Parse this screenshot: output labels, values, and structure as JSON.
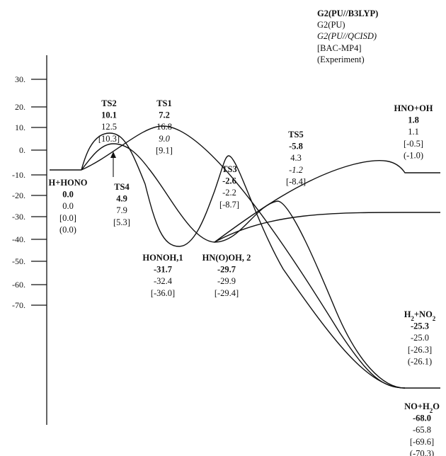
{
  "chart_data": {
    "type": "energy-profile",
    "y_ticks": [
      "30.",
      "20.",
      "10.",
      "0.",
      "-10.",
      "-20.",
      "-30.",
      "-40.",
      "-50.",
      "-60.",
      "-70."
    ],
    "legend": {
      "lines": [
        {
          "text": "G2(PU//B3LYP)",
          "style": "bold"
        },
        {
          "text": "G2(PU)",
          "style": "normal"
        },
        {
          "text": "G2(PU//QCISD)",
          "style": "italic"
        },
        {
          "text": "[BAC-MP4]",
          "style": "normal"
        },
        {
          "text": "(Experiment)",
          "style": "normal"
        }
      ]
    },
    "species": [
      {
        "id": "reactant",
        "name": "H+HONO",
        "energy": 0.0,
        "values": [
          "0.0",
          "0.0",
          "[0.0]",
          "(0.0)"
        ]
      },
      {
        "id": "ts2",
        "name": "TS2",
        "energy": 10.1,
        "values": [
          "10.1",
          "12.5",
          "[10.3]"
        ]
      },
      {
        "id": "ts1",
        "name": "TS1",
        "energy": 7.2,
        "values": [
          "7.2",
          "16.8",
          "9.0",
          "[9.1]"
        ]
      },
      {
        "id": "ts4",
        "name": "TS4",
        "energy": 4.9,
        "values": [
          "4.9",
          "7.9",
          "[5.3]"
        ]
      },
      {
        "id": "honoh",
        "name": "HONOH,1",
        "energy": -31.7,
        "values": [
          "-31.7",
          "-32.4",
          "[-36.0]"
        ]
      },
      {
        "id": "hnooh",
        "name": "HN(O)OH, 2",
        "energy": -29.7,
        "values": [
          "-29.7",
          "-29.9",
          "[-29.4]"
        ]
      },
      {
        "id": "ts3",
        "name": "TS3",
        "energy": -2.6,
        "values": [
          "-2.6",
          "-2.2",
          "[-8.7]"
        ]
      },
      {
        "id": "ts5",
        "name": "TS5",
        "energy": -5.8,
        "values": [
          "-5.8",
          "4.3",
          "-1.2",
          "[-8.4]"
        ]
      },
      {
        "id": "hnooh_prod",
        "name": "HNO+OH",
        "energy": 1.8,
        "values": [
          "1.8",
          "1.1",
          "[-0.5]",
          "(-1.0)"
        ]
      },
      {
        "id": "h2no2",
        "name": "H",
        "name_sub": "2",
        "name_rest": "+NO",
        "name_sub2": "2",
        "energy": -25.3,
        "values": [
          "-25.3",
          "-25.0",
          "[-26.3]",
          "(-26.1)"
        ]
      },
      {
        "id": "noh2o",
        "name": "NO+H",
        "name_sub": "2",
        "name_rest": "O",
        "energy": -68.0,
        "values": [
          "-68.0",
          "-65.8",
          "[-69.6]",
          "(-70.3)"
        ]
      }
    ]
  }
}
